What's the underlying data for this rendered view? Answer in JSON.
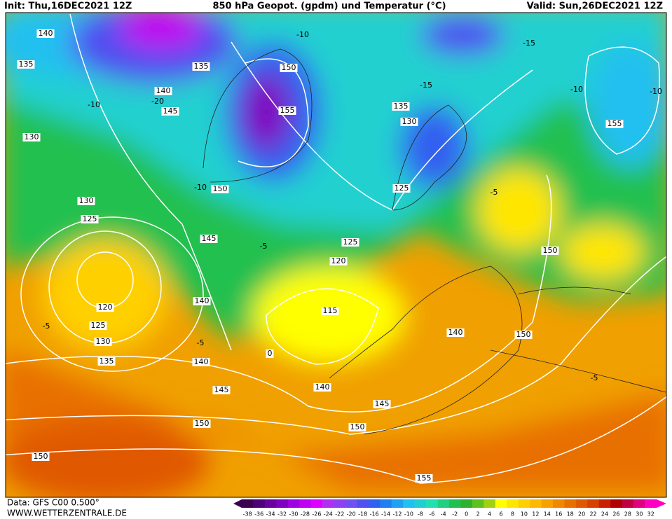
{
  "header": {
    "init": "Init: Thu,16DEC2021 12Z",
    "title": "850 hPa Geopot. (gpdm) und Temperatur (°C)",
    "valid": "Valid: Sun,26DEC2021 12Z"
  },
  "footer": {
    "data": "Data: GFS C00 0.500°",
    "site": "WWW.WETTERZENTRALE.DE"
  },
  "contour_labels": [
    "140",
    "135",
    "135",
    "140",
    "145",
    "130",
    "130",
    "125",
    "150",
    "145",
    "150",
    "155",
    "135",
    "130",
    "125",
    "125",
    "120",
    "115",
    "120",
    "125",
    "130",
    "135",
    "140",
    "145",
    "150",
    "140",
    "140",
    "145",
    "150",
    "150",
    "155",
    "140",
    "150",
    "150",
    "155",
    "-10",
    "-15",
    "-20",
    "-10",
    "-5",
    "-10",
    "-5",
    "-5",
    "-5",
    "0",
    "-15",
    "-10",
    "-5",
    "-10"
  ],
  "colorbar": {
    "labels": [
      -38,
      -36,
      -34,
      -32,
      -30,
      -28,
      -26,
      -24,
      -22,
      -20,
      -18,
      -16,
      -14,
      -12,
      -10,
      -8,
      -6,
      -4,
      -2,
      0,
      2,
      4,
      6,
      8,
      10,
      12,
      14,
      16,
      18,
      20,
      22,
      24,
      26,
      28,
      30,
      32
    ],
    "colors": [
      "#3c0050",
      "#500078",
      "#6a00a0",
      "#8000c0",
      "#a000e0",
      "#c000f0",
      "#e000ff",
      "#b030f0",
      "#9040f0",
      "#7050f0",
      "#5050f0",
      "#3060f0",
      "#2080f0",
      "#20a0f0",
      "#20c0f0",
      "#20d0d0",
      "#20e0b0",
      "#20d080",
      "#20c050",
      "#30b030",
      "#60c020",
      "#a0d010",
      "#ffff00",
      "#ffe600",
      "#ffd000",
      "#ffb800",
      "#f8a000",
      "#f08800",
      "#e87000",
      "#e05800",
      "#d84000",
      "#c82000",
      "#b00000",
      "#c00040",
      "#e00080",
      "#ff00c0"
    ]
  }
}
